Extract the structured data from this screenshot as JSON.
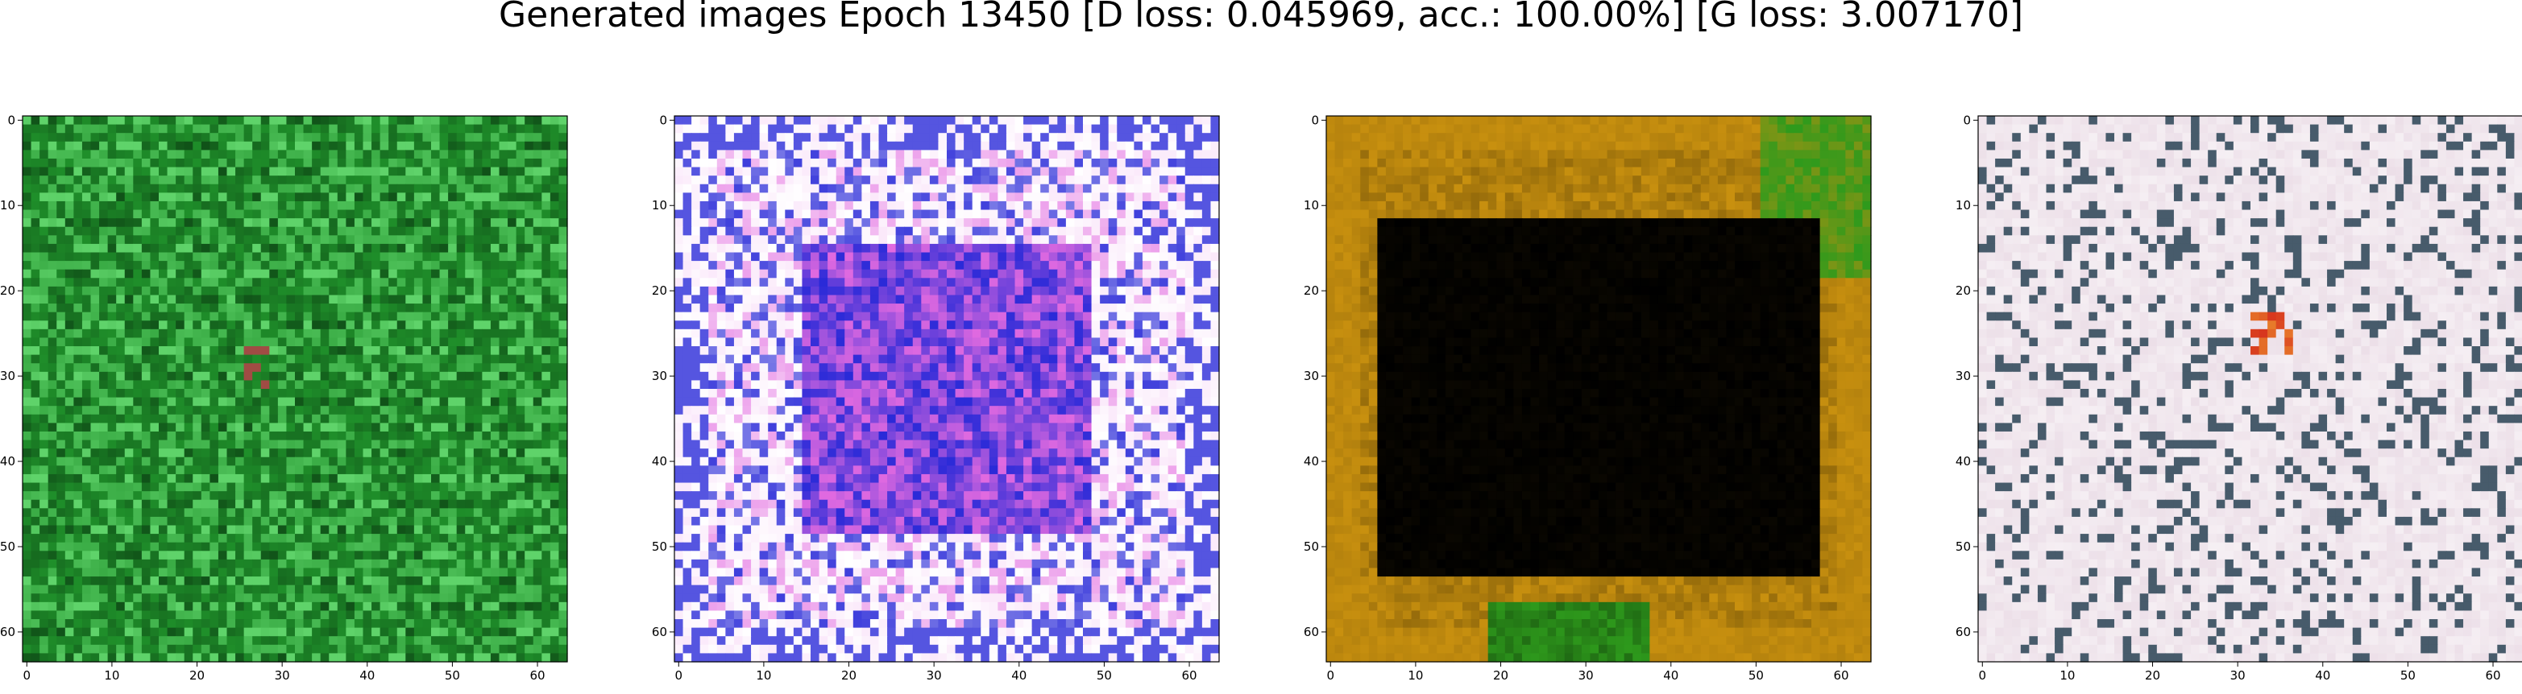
{
  "figure": {
    "title": "Generated images Epoch 13450 [D loss: 0.045969, acc.: 100.00%] [G loss: 3.007170]"
  },
  "chart_data": {
    "type": "image-grid",
    "panels": [
      {
        "image_description_key": "green noisy grid",
        "xlim": [
          -0.5,
          63.5
        ],
        "ylim": [
          63.5,
          -0.5
        ],
        "xticks": [
          0,
          10,
          20,
          30,
          40,
          50,
          60
        ],
        "yticks": [
          0,
          10,
          20,
          30,
          40,
          50,
          60
        ],
        "palette": {
          "base": "#1f8f2a",
          "light": "#5fd36a",
          "dark": "#0b3d12",
          "accent": "#b02a3a"
        }
      },
      {
        "image_description_key": "blue pink white frame",
        "xlim": [
          -0.5,
          63.5
        ],
        "ylim": [
          63.5,
          -0.5
        ],
        "xticks": [
          0,
          10,
          20,
          30,
          40,
          50,
          60
        ],
        "yticks": [
          0,
          10,
          20,
          30,
          40,
          50,
          60
        ],
        "palette": {
          "base": "#e8d8f0",
          "light": "#ffffff",
          "dark": "#2a2ad8",
          "accent": "#e26ae0"
        }
      },
      {
        "image_description_key": "black center ochre border",
        "xlim": [
          -0.5,
          63.5
        ],
        "ylim": [
          63.5,
          -0.5
        ],
        "xticks": [
          0,
          10,
          20,
          30,
          40,
          50,
          60
        ],
        "yticks": [
          0,
          10,
          20,
          30,
          40,
          50,
          60
        ],
        "palette": {
          "base": "#c8900f",
          "light": "#e0b040",
          "dark": "#000000",
          "accent": "#2e9a1c"
        }
      },
      {
        "image_description_key": "light lavender noisy frame",
        "xlim": [
          -0.5,
          63.5
        ],
        "ylim": [
          63.5,
          -0.5
        ],
        "xticks": [
          0,
          10,
          20,
          30,
          40,
          50,
          60
        ],
        "yticks": [
          0,
          10,
          20,
          30,
          40,
          50,
          60
        ],
        "palette": {
          "base": "#ecdfe8",
          "light": "#ffffff",
          "dark": "#1e3a4c",
          "accent": "#d01818"
        }
      }
    ]
  }
}
